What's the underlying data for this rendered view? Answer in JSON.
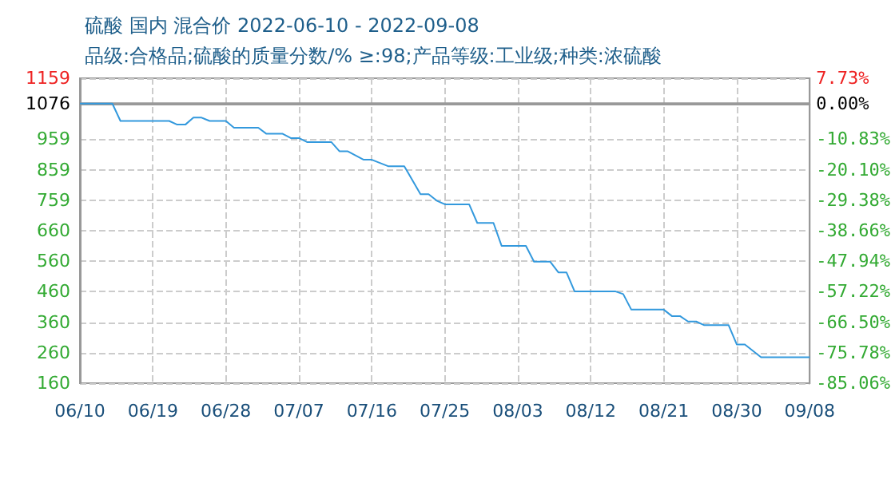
{
  "chart_data": {
    "type": "line",
    "title": "硫酸 国内 混合价 2022-06-10 - 2022-09-08",
    "subtitle": "品级:合格品;硫酸的质量分数/% ≥:98;产品等级:工业级;种类:浓硫酸",
    "x": [
      "2022-06-10",
      "2022-06-14",
      "2022-06-15",
      "2022-06-21",
      "2022-06-22",
      "2022-06-23",
      "2022-06-24",
      "2022-06-25",
      "2022-06-26",
      "2022-06-28",
      "2022-06-29",
      "2022-07-02",
      "2022-07-03",
      "2022-07-05",
      "2022-07-06",
      "2022-07-07",
      "2022-07-08",
      "2022-07-11",
      "2022-07-12",
      "2022-07-13",
      "2022-07-15",
      "2022-07-16",
      "2022-07-18",
      "2022-07-20",
      "2022-07-22",
      "2022-07-23",
      "2022-07-24",
      "2022-07-25",
      "2022-07-28",
      "2022-07-29",
      "2022-07-31",
      "2022-08-01",
      "2022-08-04",
      "2022-08-05",
      "2022-08-07",
      "2022-08-08",
      "2022-08-09",
      "2022-08-10",
      "2022-08-15",
      "2022-08-16",
      "2022-08-17",
      "2022-08-21",
      "2022-08-22",
      "2022-08-23",
      "2022-08-24",
      "2022-08-25",
      "2022-08-26",
      "2022-08-29",
      "2022-08-30",
      "2022-08-31",
      "2022-09-02",
      "2022-09-08"
    ],
    "series": [
      {
        "color": "#3399dd",
        "values": [
          1076,
          1076,
          1019,
          1019,
          1007,
          1007,
          1030,
          1030,
          1019,
          1019,
          997,
          997,
          977,
          977,
          963,
          963,
          950,
          950,
          920,
          920,
          892,
          892,
          871,
          871,
          779,
          779,
          758,
          746,
          746,
          685,
          685,
          610,
          610,
          558,
          558,
          523,
          523,
          461,
          461,
          452,
          401,
          401,
          380,
          380,
          362,
          362,
          350,
          350,
          287,
          287,
          245,
          245
        ]
      }
    ],
    "xlim": [
      "2022-06-10",
      "2022-09-08"
    ],
    "xticks": [
      {
        "value": "2022-06-10",
        "label": "06/10"
      },
      {
        "value": "2022-06-19",
        "label": "06/19"
      },
      {
        "value": "2022-06-28",
        "label": "06/28"
      },
      {
        "value": "2022-07-07",
        "label": "07/07"
      },
      {
        "value": "2022-07-16",
        "label": "07/16"
      },
      {
        "value": "2022-07-25",
        "label": "07/25"
      },
      {
        "value": "2022-08-03",
        "label": "08/03"
      },
      {
        "value": "2022-08-12",
        "label": "08/12"
      },
      {
        "value": "2022-08-21",
        "label": "08/21"
      },
      {
        "value": "2022-08-30",
        "label": "08/30"
      },
      {
        "value": "2022-09-08",
        "label": "09/08"
      }
    ],
    "ylim": [
      160,
      1159
    ],
    "yticks": [
      160,
      260,
      360,
      460,
      560,
      660,
      759,
      859,
      959,
      1076,
      1159
    ],
    "y2lim": [
      -85.06,
      7.73
    ],
    "y2ticks": [
      {
        "value": -85.06,
        "label": "-85.06%"
      },
      {
        "value": -75.78,
        "label": "-75.78%"
      },
      {
        "value": -66.5,
        "label": "-66.50%"
      },
      {
        "value": -57.22,
        "label": "-57.22%"
      },
      {
        "value": -47.94,
        "label": "-47.94%"
      },
      {
        "value": -38.66,
        "label": "-38.66%"
      },
      {
        "value": -29.38,
        "label": "-29.38%"
      },
      {
        "value": -20.1,
        "label": "-20.10%"
      },
      {
        "value": -10.83,
        "label": "-10.83%"
      },
      {
        "value": 0,
        "label": "0.00%"
      },
      {
        "value": 7.73,
        "label": "7.73%"
      }
    ],
    "ref_lines": [
      {
        "axis": "y",
        "value": 1076,
        "color": "#999999"
      }
    ],
    "grid": true,
    "marker": "none",
    "line_style": "solid"
  }
}
